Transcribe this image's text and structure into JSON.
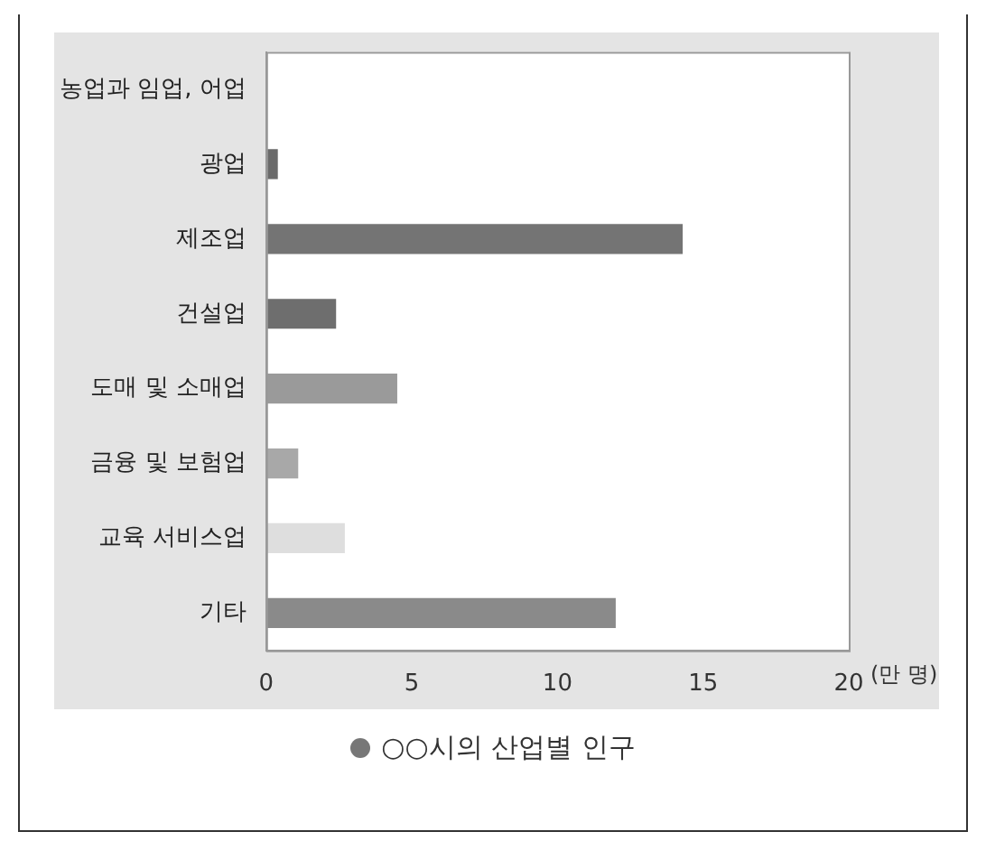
{
  "chart_data": {
    "type": "bar",
    "orientation": "horizontal",
    "title": "○○시의 산업별 인구",
    "xlabel": "(만 명)",
    "categories": [
      "농업과 임업, 어업",
      "광업",
      "제조업",
      "건설업",
      "도매 및 소매업",
      "금융 및 보험업",
      "교육 서비스업",
      "기타"
    ],
    "values": [
      null,
      0.4,
      14.3,
      2.4,
      4.5,
      1.1,
      2.7,
      12
    ],
    "colors": [
      "#7a7a7a",
      "#6a6a6a",
      "#747474",
      "#6e6e6e",
      "#9a9a9a",
      "#a8a8a8",
      "#dedede",
      "#8a8a8a"
    ],
    "xlim": [
      0,
      20
    ],
    "xticks": [
      0,
      5,
      10,
      15,
      20
    ],
    "grid": false,
    "legend": false
  }
}
